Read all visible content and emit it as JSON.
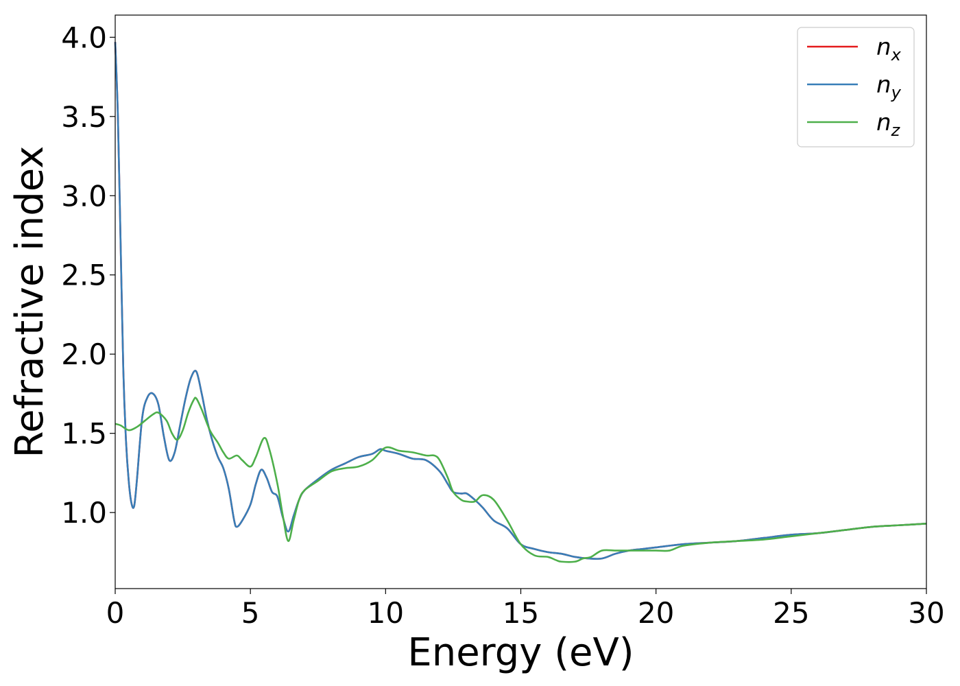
{
  "chart_data": {
    "type": "line",
    "title": "",
    "xlabel": "Energy (eV)",
    "ylabel": "Refractive index",
    "xlim": [
      0,
      30
    ],
    "ylim": [
      0.52,
      4.14
    ],
    "xticks": [
      0,
      5,
      10,
      15,
      20,
      25,
      30
    ],
    "xtick_labels": [
      "0",
      "5",
      "10",
      "15",
      "20",
      "25",
      "30"
    ],
    "yticks": [
      1.0,
      1.5,
      2.0,
      2.5,
      3.0,
      3.5,
      4.0
    ],
    "ytick_labels": [
      "1.0",
      "1.5",
      "2.0",
      "2.5",
      "3.0",
      "3.5",
      "4.0"
    ],
    "grid": false,
    "legend_position": "top-right",
    "series": [
      {
        "name": "n_x",
        "label_main": "n",
        "label_sub": "x",
        "color": "#e41a1c",
        "x": [
          0.0,
          0.1,
          0.2,
          0.3,
          0.4,
          0.5,
          0.6,
          0.7,
          0.8,
          1.0,
          1.2,
          1.4,
          1.6,
          1.8,
          2.0,
          2.2,
          2.4,
          2.6,
          2.8,
          3.0,
          3.2,
          3.4,
          3.6,
          3.8,
          4.0,
          4.2,
          4.4,
          4.5,
          4.7,
          5.0,
          5.2,
          5.4,
          5.6,
          5.8,
          6.0,
          6.2,
          6.4,
          6.6,
          6.8,
          7.0,
          7.5,
          8.0,
          8.5,
          9.0,
          9.5,
          9.8,
          10.0,
          10.5,
          11.0,
          11.5,
          12.0,
          12.3,
          12.5,
          12.8,
          13.0,
          13.3,
          13.6,
          14.0,
          14.5,
          15.0,
          15.5,
          16.0,
          16.5,
          17.0,
          17.5,
          18.0,
          18.5,
          19.0,
          19.5,
          20.0,
          21.0,
          22.0,
          23.0,
          24.0,
          25.0,
          26.0,
          27.0,
          28.0,
          29.0,
          30.0
        ],
        "y": [
          3.97,
          3.5,
          2.7,
          1.9,
          1.45,
          1.2,
          1.06,
          1.04,
          1.2,
          1.6,
          1.73,
          1.75,
          1.68,
          1.48,
          1.33,
          1.38,
          1.55,
          1.72,
          1.85,
          1.89,
          1.75,
          1.58,
          1.45,
          1.35,
          1.28,
          1.15,
          0.95,
          0.91,
          0.95,
          1.05,
          1.18,
          1.27,
          1.22,
          1.13,
          1.1,
          0.97,
          0.88,
          0.98,
          1.08,
          1.14,
          1.21,
          1.27,
          1.31,
          1.35,
          1.37,
          1.4,
          1.39,
          1.37,
          1.34,
          1.33,
          1.26,
          1.18,
          1.13,
          1.12,
          1.12,
          1.08,
          1.03,
          0.95,
          0.9,
          0.8,
          0.77,
          0.75,
          0.74,
          0.72,
          0.71,
          0.71,
          0.74,
          0.76,
          0.77,
          0.78,
          0.8,
          0.81,
          0.82,
          0.84,
          0.86,
          0.87,
          0.89,
          0.91,
          0.92,
          0.93
        ]
      },
      {
        "name": "n_y",
        "label_main": "n",
        "label_sub": "y",
        "color": "#377eb8",
        "x": [
          0.0,
          0.1,
          0.2,
          0.3,
          0.4,
          0.5,
          0.6,
          0.7,
          0.8,
          1.0,
          1.2,
          1.4,
          1.6,
          1.8,
          2.0,
          2.2,
          2.4,
          2.6,
          2.8,
          3.0,
          3.2,
          3.4,
          3.6,
          3.8,
          4.0,
          4.2,
          4.4,
          4.5,
          4.7,
          5.0,
          5.2,
          5.4,
          5.6,
          5.8,
          6.0,
          6.2,
          6.4,
          6.6,
          6.8,
          7.0,
          7.5,
          8.0,
          8.5,
          9.0,
          9.5,
          9.8,
          10.0,
          10.5,
          11.0,
          11.5,
          12.0,
          12.3,
          12.5,
          12.8,
          13.0,
          13.3,
          13.6,
          14.0,
          14.5,
          15.0,
          15.5,
          16.0,
          16.5,
          17.0,
          17.5,
          18.0,
          18.5,
          19.0,
          19.5,
          20.0,
          21.0,
          22.0,
          23.0,
          24.0,
          25.0,
          26.0,
          27.0,
          28.0,
          29.0,
          30.0
        ],
        "y": [
          3.97,
          3.5,
          2.7,
          1.9,
          1.45,
          1.2,
          1.06,
          1.04,
          1.2,
          1.6,
          1.73,
          1.75,
          1.68,
          1.48,
          1.33,
          1.38,
          1.55,
          1.72,
          1.85,
          1.89,
          1.75,
          1.58,
          1.45,
          1.35,
          1.28,
          1.15,
          0.95,
          0.91,
          0.95,
          1.05,
          1.18,
          1.27,
          1.22,
          1.13,
          1.1,
          0.97,
          0.88,
          0.98,
          1.08,
          1.14,
          1.21,
          1.27,
          1.31,
          1.35,
          1.37,
          1.4,
          1.39,
          1.37,
          1.34,
          1.33,
          1.26,
          1.18,
          1.13,
          1.12,
          1.12,
          1.08,
          1.03,
          0.95,
          0.9,
          0.8,
          0.77,
          0.75,
          0.74,
          0.72,
          0.71,
          0.71,
          0.74,
          0.76,
          0.77,
          0.78,
          0.8,
          0.81,
          0.82,
          0.84,
          0.86,
          0.87,
          0.89,
          0.91,
          0.92,
          0.93
        ]
      },
      {
        "name": "n_z",
        "label_main": "n",
        "label_sub": "z",
        "color": "#4daf4a",
        "x": [
          0.0,
          0.2,
          0.5,
          0.8,
          1.1,
          1.4,
          1.6,
          1.9,
          2.1,
          2.3,
          2.5,
          2.7,
          2.9,
          3.0,
          3.2,
          3.5,
          3.8,
          4.0,
          4.2,
          4.5,
          4.7,
          5.0,
          5.2,
          5.5,
          5.7,
          6.0,
          6.2,
          6.4,
          6.6,
          6.8,
          7.0,
          7.5,
          8.0,
          8.5,
          9.0,
          9.5,
          10.0,
          10.5,
          11.0,
          11.5,
          11.8,
          12.0,
          12.3,
          12.5,
          12.8,
          13.0,
          13.3,
          13.6,
          14.0,
          14.5,
          15.0,
          15.5,
          16.0,
          16.3,
          16.5,
          17.0,
          17.3,
          17.6,
          18.0,
          18.5,
          19.0,
          19.5,
          20.0,
          20.5,
          21.0,
          22.0,
          23.0,
          24.0,
          25.0,
          26.0,
          27.0,
          28.0,
          29.0,
          30.0
        ],
        "y": [
          1.56,
          1.55,
          1.52,
          1.54,
          1.58,
          1.62,
          1.63,
          1.58,
          1.5,
          1.46,
          1.52,
          1.63,
          1.71,
          1.72,
          1.65,
          1.52,
          1.44,
          1.38,
          1.34,
          1.36,
          1.33,
          1.29,
          1.35,
          1.47,
          1.4,
          1.18,
          0.98,
          0.82,
          0.95,
          1.08,
          1.14,
          1.2,
          1.26,
          1.28,
          1.29,
          1.33,
          1.41,
          1.39,
          1.38,
          1.36,
          1.36,
          1.33,
          1.22,
          1.13,
          1.08,
          1.07,
          1.07,
          1.11,
          1.08,
          0.95,
          0.8,
          0.73,
          0.72,
          0.7,
          0.69,
          0.69,
          0.71,
          0.72,
          0.76,
          0.76,
          0.76,
          0.76,
          0.76,
          0.76,
          0.79,
          0.81,
          0.82,
          0.83,
          0.85,
          0.87,
          0.89,
          0.91,
          0.92,
          0.93
        ]
      }
    ]
  }
}
